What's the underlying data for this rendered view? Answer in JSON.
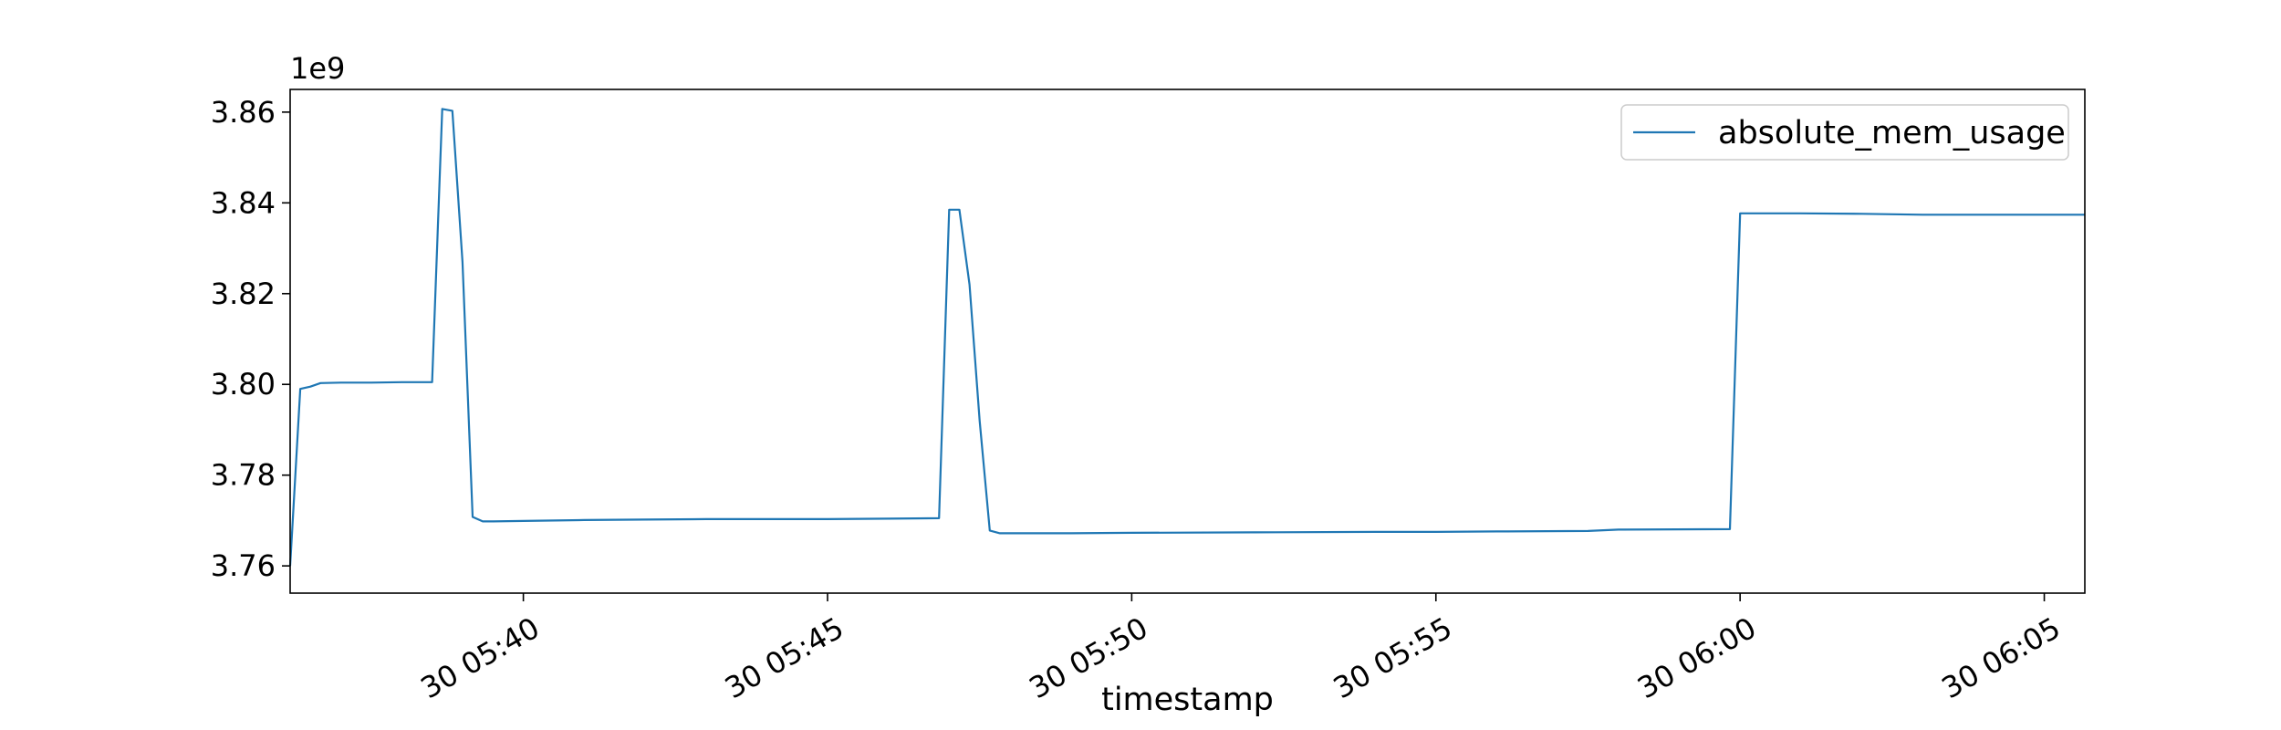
{
  "chart_data": {
    "type": "line",
    "title": "",
    "xlabel": "timestamp",
    "ylabel": "",
    "y_offset_label": "1e9",
    "y_scale": 1000000000,
    "xlim": [
      "05:36:10",
      "06:05:40"
    ],
    "ylim": [
      3.754,
      3.865
    ],
    "y_ticks": [
      {
        "value": 3.76,
        "label": "3.76"
      },
      {
        "value": 3.78,
        "label": "3.78"
      },
      {
        "value": 3.8,
        "label": "3.80"
      },
      {
        "value": 3.82,
        "label": "3.82"
      },
      {
        "value": 3.84,
        "label": "3.84"
      },
      {
        "value": 3.86,
        "label": "3.86"
      }
    ],
    "x_ticks": [
      {
        "value": "05:40:00",
        "label": "30 05:40"
      },
      {
        "value": "05:45:00",
        "label": "30 05:45"
      },
      {
        "value": "05:50:00",
        "label": "30 05:50"
      },
      {
        "value": "05:55:00",
        "label": "30 05:55"
      },
      {
        "value": "06:00:00",
        "label": "30 06:00"
      },
      {
        "value": "06:05:00",
        "label": "30 06:05"
      }
    ],
    "grid": false,
    "legend": {
      "position": "top-right",
      "entries": [
        "absolute_mem_usage"
      ]
    },
    "series": [
      {
        "name": "absolute_mem_usage",
        "color": "#1f77b4",
        "points": [
          [
            "05:36:10",
            3.76
          ],
          [
            "05:36:20",
            3.799
          ],
          [
            "05:36:30",
            3.7995
          ],
          [
            "05:36:40",
            3.8003
          ],
          [
            "05:37:00",
            3.8004
          ],
          [
            "05:37:30",
            3.8004
          ],
          [
            "05:38:00",
            3.8005
          ],
          [
            "05:38:30",
            3.8005
          ],
          [
            "05:38:20",
            3.8005
          ],
          [
            "05:38:30",
            3.8005
          ],
          [
            "05:38:40",
            3.8607
          ],
          [
            "05:38:50",
            3.8603
          ],
          [
            "05:39:00",
            3.827
          ],
          [
            "05:39:10",
            3.7708
          ],
          [
            "05:39:20",
            3.7698
          ],
          [
            "05:39:30",
            3.7698
          ],
          [
            "05:40:00",
            3.7699
          ],
          [
            "05:41:00",
            3.7701
          ],
          [
            "05:42:00",
            3.7702
          ],
          [
            "05:43:00",
            3.7703
          ],
          [
            "05:44:00",
            3.7703
          ],
          [
            "05:45:00",
            3.7703
          ],
          [
            "05:46:00",
            3.7704
          ],
          [
            "05:46:50",
            3.7705
          ],
          [
            "05:47:00",
            3.8385
          ],
          [
            "05:47:10",
            3.8385
          ],
          [
            "05:47:20",
            3.822
          ],
          [
            "05:47:30",
            3.792
          ],
          [
            "05:47:40",
            3.7678
          ],
          [
            "05:47:50",
            3.7672
          ],
          [
            "05:48:00",
            3.7672
          ],
          [
            "05:49:00",
            3.7672
          ],
          [
            "05:50:00",
            3.7673
          ],
          [
            "05:52:00",
            3.7674
          ],
          [
            "05:54:00",
            3.7675
          ],
          [
            "05:55:00",
            3.7675
          ],
          [
            "05:56:00",
            3.7676
          ],
          [
            "05:57:30",
            3.7677
          ],
          [
            "05:58:00",
            3.768
          ],
          [
            "05:59:50",
            3.7681
          ],
          [
            "06:00:00",
            3.8377
          ],
          [
            "06:01:00",
            3.8377
          ],
          [
            "06:02:00",
            3.8376
          ],
          [
            "06:03:00",
            3.8374
          ],
          [
            "06:04:00",
            3.8374
          ],
          [
            "06:05:00",
            3.8374
          ],
          [
            "06:05:40",
            3.8374
          ]
        ]
      }
    ]
  }
}
